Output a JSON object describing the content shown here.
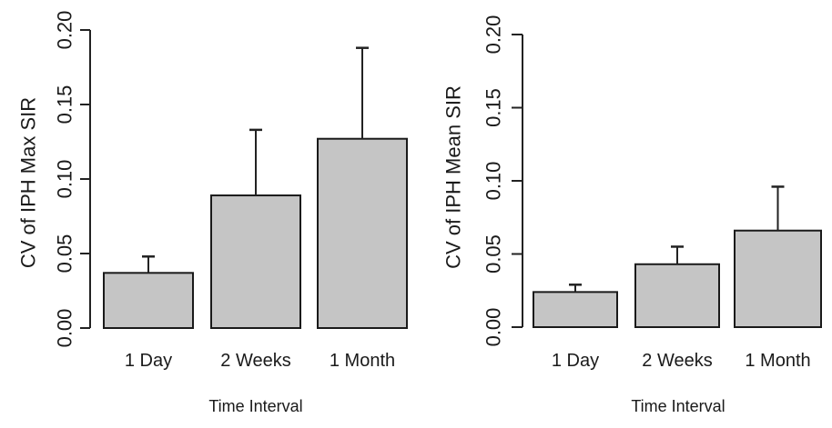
{
  "figure": {
    "description": "Two side-by-side bar charts of coefficient of variation by time interval",
    "background": "#ffffff"
  },
  "chart_data": [
    {
      "type": "bar",
      "title": "",
      "ylabel": "CV of IPH Max SIR",
      "xlabel": "Time Interval",
      "categories": [
        "1 Day",
        "2 Weeks",
        "1 Month"
      ],
      "values": [
        0.037,
        0.089,
        0.127
      ],
      "error_bar_tops": [
        0.048,
        0.133,
        0.188
      ],
      "ylim": [
        0,
        0.2
      ],
      "ytick_values": [
        0.0,
        0.05,
        0.1,
        0.15,
        0.2
      ],
      "ytick_labels": [
        "0.00",
        "0.05",
        "0.10",
        "0.15",
        "0.20"
      ],
      "grid": false,
      "legend": "none",
      "bar_fill": "#c5c5c5",
      "bar_border": "#1a1a1a",
      "axis_color": "#222222",
      "text_color": "#1a1a1a"
    },
    {
      "type": "bar",
      "title": "",
      "ylabel": "CV of IPH Mean SIR",
      "xlabel": "Time Interval",
      "categories": [
        "1 Day",
        "2 Weeks",
        "1 Month"
      ],
      "values": [
        0.024,
        0.043,
        0.066
      ],
      "error_bar_tops": [
        0.029,
        0.055,
        0.096
      ],
      "ylim": [
        0,
        0.2
      ],
      "ytick_values": [
        0.0,
        0.05,
        0.1,
        0.15,
        0.2
      ],
      "ytick_labels": [
        "0.00",
        "0.05",
        "0.10",
        "0.15",
        "0.20"
      ],
      "grid": false,
      "legend": "none",
      "bar_fill": "#c5c5c5",
      "bar_border": "#1a1a1a",
      "axis_color": "#222222",
      "text_color": "#1a1a1a"
    }
  ]
}
